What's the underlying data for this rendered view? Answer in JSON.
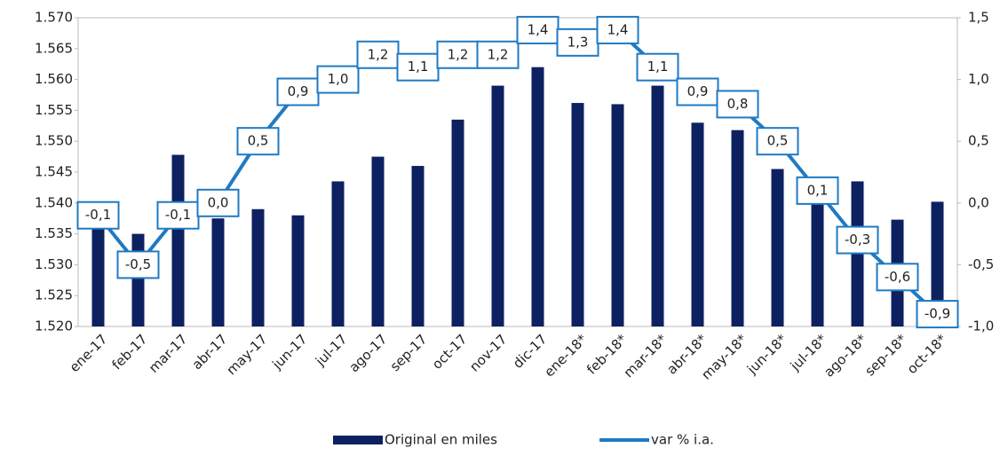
{
  "chart_data": {
    "type": "bar+line",
    "categories": [
      "ene-17",
      "feb-17",
      "mar-17",
      "abr-17",
      "may-17",
      "jun-17",
      "jul-17",
      "ago-17",
      "sep-17",
      "oct-17",
      "nov-17",
      "dic-17",
      "ene-18*",
      "feb-18*",
      "mar-18*",
      "abr-18*",
      "may-18*",
      "jun-18*",
      "jul-18*",
      "ago-18*",
      "sep-18*",
      "oct-18*"
    ],
    "series": [
      {
        "name": "Original en miles",
        "type": "bar",
        "color": "#0d2161",
        "values": [
          1536,
          1535,
          1547.8,
          1537.5,
          1539,
          1538,
          1543.5,
          1547.5,
          1546,
          1553.5,
          1559,
          1562,
          1556.2,
          1556,
          1559,
          1553,
          1551.8,
          1545.5,
          1540,
          1543.5,
          1537.3,
          1540.2
        ]
      },
      {
        "name": "var % i.a.",
        "type": "line",
        "axis": "y2",
        "color": "#1f7ac4",
        "values": [
          -0.1,
          -0.5,
          -0.1,
          0.0,
          0.5,
          0.9,
          1.0,
          1.2,
          1.1,
          1.2,
          1.2,
          1.4,
          1.3,
          1.4,
          1.1,
          0.9,
          0.8,
          0.5,
          0.1,
          -0.3,
          -0.6,
          -0.9
        ],
        "value_labels": [
          "-0,1",
          "-0,5",
          "-0,1",
          "0,0",
          "0,5",
          "0,9",
          "1,0",
          "1,2",
          "1,1",
          "1,2",
          "1,2",
          "1,4",
          "1,3",
          "1,4",
          "1,1",
          "0,9",
          "0,8",
          "0,5",
          "0,1",
          "-0,3",
          "-0,6",
          "-0,9"
        ]
      }
    ],
    "ylim": [
      1520,
      1570
    ],
    "yticks": [
      {
        "value": 1520,
        "label": "1.520"
      },
      {
        "value": 1525,
        "label": "1.525"
      },
      {
        "value": 1530,
        "label": "1.530"
      },
      {
        "value": 1535,
        "label": "1.535"
      },
      {
        "value": 1540,
        "label": "1.540"
      },
      {
        "value": 1545,
        "label": "1.545"
      },
      {
        "value": 1550,
        "label": "1.550"
      },
      {
        "value": 1555,
        "label": "1.555"
      },
      {
        "value": 1560,
        "label": "1.560"
      },
      {
        "value": 1565,
        "label": "1.565"
      },
      {
        "value": 1570,
        "label": "1.570"
      }
    ],
    "y2lim": [
      -1.0,
      1.5
    ],
    "y2ticks": [
      {
        "value": -1,
        "label": "-1,0"
      },
      {
        "value": -0.5,
        "label": "-0,5"
      },
      {
        "value": 0,
        "label": "0,0"
      },
      {
        "value": 0.5,
        "label": "0,5"
      },
      {
        "value": 1,
        "label": "1,0"
      },
      {
        "value": 1.5,
        "label": "1,5"
      }
    ],
    "legend": "bottom"
  }
}
